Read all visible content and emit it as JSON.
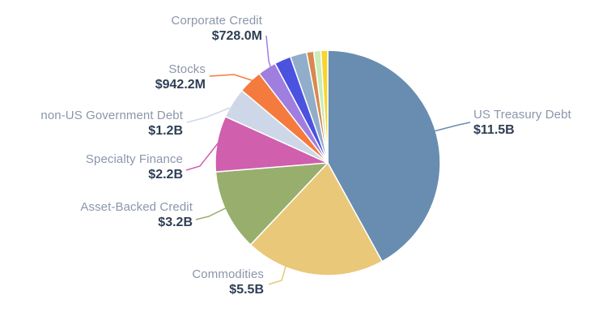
{
  "chart_data": {
    "type": "pie",
    "title": "",
    "legend_position": "none",
    "value_units": "USD (B = billions, M = millions)",
    "start_angle_deg": 0,
    "direction": "clockwise",
    "label_name_color": "#8b96aa",
    "label_value_color": "#2e3e55",
    "background_color": "#ffffff",
    "slices": [
      {
        "id": "us-treasury-debt",
        "label": "US Treasury Debt",
        "value": 11.5,
        "display": "$11.5B",
        "color": "#688db0",
        "labeled": true
      },
      {
        "id": "commodities",
        "label": "Commodities",
        "value": 5.5,
        "display": "$5.5B",
        "color": "#e9c87a",
        "labeled": true
      },
      {
        "id": "asset-backed-credit",
        "label": "Asset-Backed Credit",
        "value": 3.2,
        "display": "$3.2B",
        "color": "#97ae6d",
        "labeled": true
      },
      {
        "id": "specialty-finance",
        "label": "Specialty Finance",
        "value": 2.2,
        "display": "$2.2B",
        "color": "#d05fae",
        "labeled": true
      },
      {
        "id": "non-us-government-debt",
        "label": "non-US Government Debt",
        "value": 1.2,
        "display": "$1.2B",
        "color": "#cdd7e7",
        "labeled": true
      },
      {
        "id": "stocks",
        "label": "Stocks",
        "value": 0.9422,
        "display": "$942.2M",
        "color": "#f57a3e",
        "labeled": true
      },
      {
        "id": "corporate-credit",
        "label": "Corporate Credit",
        "value": 0.728,
        "display": "$728.0M",
        "color": "#a07ee0",
        "labeled": true
      },
      {
        "id": "unlabeled-1",
        "label": "",
        "value": 0.65,
        "display": "",
        "color": "#4b52e0",
        "labeled": false,
        "estimated": true
      },
      {
        "id": "unlabeled-2",
        "label": "",
        "value": 0.65,
        "display": "",
        "color": "#90adc9",
        "labeled": false,
        "estimated": true
      },
      {
        "id": "unlabeled-3",
        "label": "",
        "value": 0.28,
        "display": "",
        "color": "#d8894f",
        "labeled": false,
        "estimated": true
      },
      {
        "id": "unlabeled-4",
        "label": "",
        "value": 0.28,
        "display": "",
        "color": "#c9ecb8",
        "labeled": false,
        "estimated": true
      },
      {
        "id": "unlabeled-5",
        "label": "",
        "value": 0.27,
        "display": "",
        "color": "#f8d42e",
        "labeled": false,
        "estimated": true
      }
    ]
  }
}
